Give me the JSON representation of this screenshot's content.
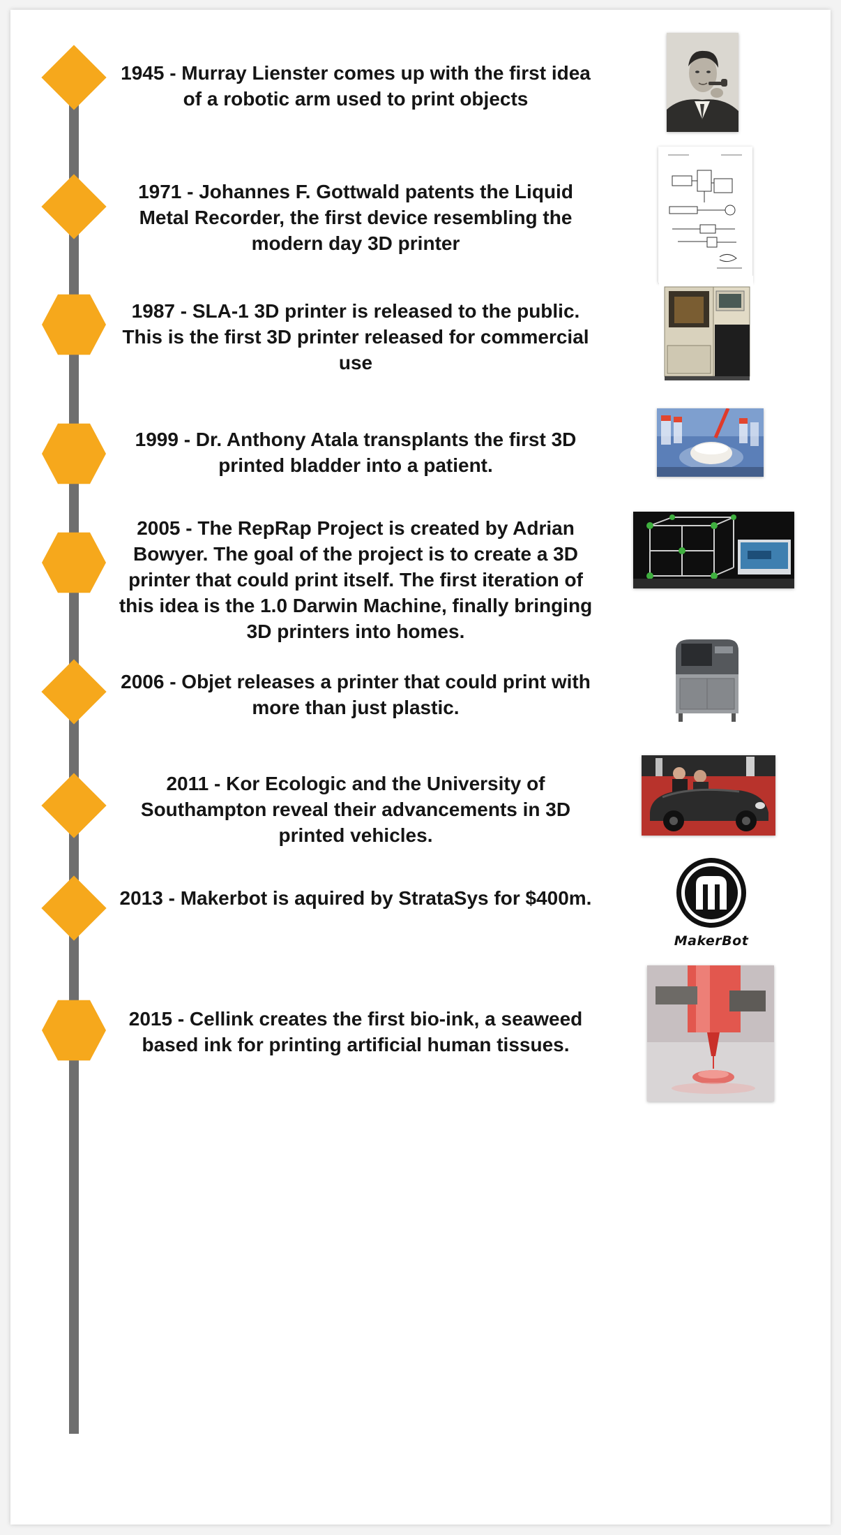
{
  "events": [
    {
      "text": "1945 - Murray Lienster comes up with the first idea of a robotic arm used to print objects",
      "image": "portrait-photo"
    },
    {
      "text": "1971 - Johannes F. Gottwald patents the Liquid Metal  Recorder,  the first device resembling the modern day 3D printer",
      "image": "patent-drawing"
    },
    {
      "text": "1987 - SLA-1 3D printer is released to the public. This is the first 3D printer released for commercial use",
      "image": "sla1-printer-photo"
    },
    {
      "text": "1999 - Dr. Anthony Atala transplants the first 3D printed bladder into a patient.",
      "image": "lab-bladder-photo"
    },
    {
      "text": "2005 - The RepRap Project is created by Adrian Bowyer. The goal of the project is to create a 3D printer that could print itself. The first iteration of this idea is the 1.0 Darwin Machine, finally bringing 3D printers into homes.",
      "image": "reprap-darwin-photo"
    },
    {
      "text": "2006 - Objet releases a printer that could print with more than just plastic.",
      "image": "objet-printer-photo"
    },
    {
      "text": "2011 - Kor Ecologic and the University of Southampton  reveal their advancements in 3D printed vehicles.",
      "image": "printed-car-photo"
    },
    {
      "text": "2013 - Makerbot is aquired by StrataSys for $400m.",
      "image": "makerbot-logo"
    },
    {
      "text": "2015 - Cellink creates the first bio-ink, a seaweed based ink for printing artificial human tissues.",
      "image": "bioink-printing-photo"
    }
  ],
  "makerbot_logo_text": "MakerBot",
  "colors": {
    "marker": "#f6a81c",
    "timeline": "#6e6e6e",
    "text": "#151515",
    "background": "#ffffff"
  }
}
